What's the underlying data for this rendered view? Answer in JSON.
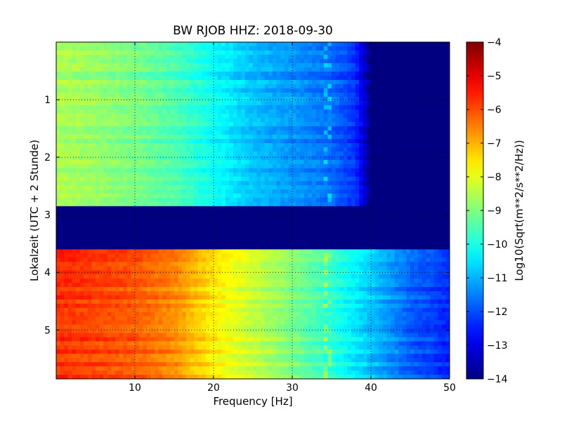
{
  "chart_data": {
    "type": "heatmap",
    "title": "BW RJOB HHZ: 2018-09-30",
    "xlabel": "Frequency [Hz]",
    "ylabel": "Lokalzeit (UTC + 2 Stunde)",
    "xlim": [
      0,
      50
    ],
    "ylim": [
      0,
      5.85
    ],
    "y_axis_inverted": true,
    "x_ticks": [
      10,
      20,
      30,
      40,
      50
    ],
    "y_ticks": [
      1,
      2,
      3,
      4,
      5
    ],
    "grid": true,
    "colormap": "jet",
    "colorbar": {
      "label": "Log10(Sqrt(m**2/s**2/Hz))",
      "range": [
        -14,
        -4
      ],
      "ticks": [
        -4,
        -5,
        -6,
        -7,
        -8,
        -9,
        -10,
        -11,
        -12,
        -13,
        -14
      ]
    },
    "bands": [
      {
        "time_range": [
          0,
          2.85
        ],
        "level_by_frequency": {
          "freq_hz": [
            0,
            5,
            10,
            15,
            20,
            25,
            30,
            35,
            38,
            40,
            50
          ],
          "value": [
            -8.6,
            -8.8,
            -9.1,
            -9.5,
            -10.2,
            -10.9,
            -11.3,
            -11.7,
            -12.3,
            -14,
            -14
          ]
        },
        "tonal_line_hz": 34.5
      },
      {
        "time_range": [
          2.85,
          3.6
        ],
        "level_by_frequency": {
          "freq_hz": [
            0,
            50
          ],
          "value": [
            -14,
            -14
          ]
        },
        "note": "data gap"
      },
      {
        "time_range": [
          3.6,
          5.85
        ],
        "level_by_frequency": {
          "freq_hz": [
            0,
            5,
            10,
            15,
            20,
            25,
            30,
            35,
            40,
            45,
            50
          ],
          "value": [
            -5.7,
            -5.9,
            -6.1,
            -6.6,
            -7.6,
            -8.3,
            -9.0,
            -9.8,
            -10.8,
            -11.8,
            -12.4
          ]
        },
        "tonal_line_hz": 34.5
      }
    ]
  }
}
